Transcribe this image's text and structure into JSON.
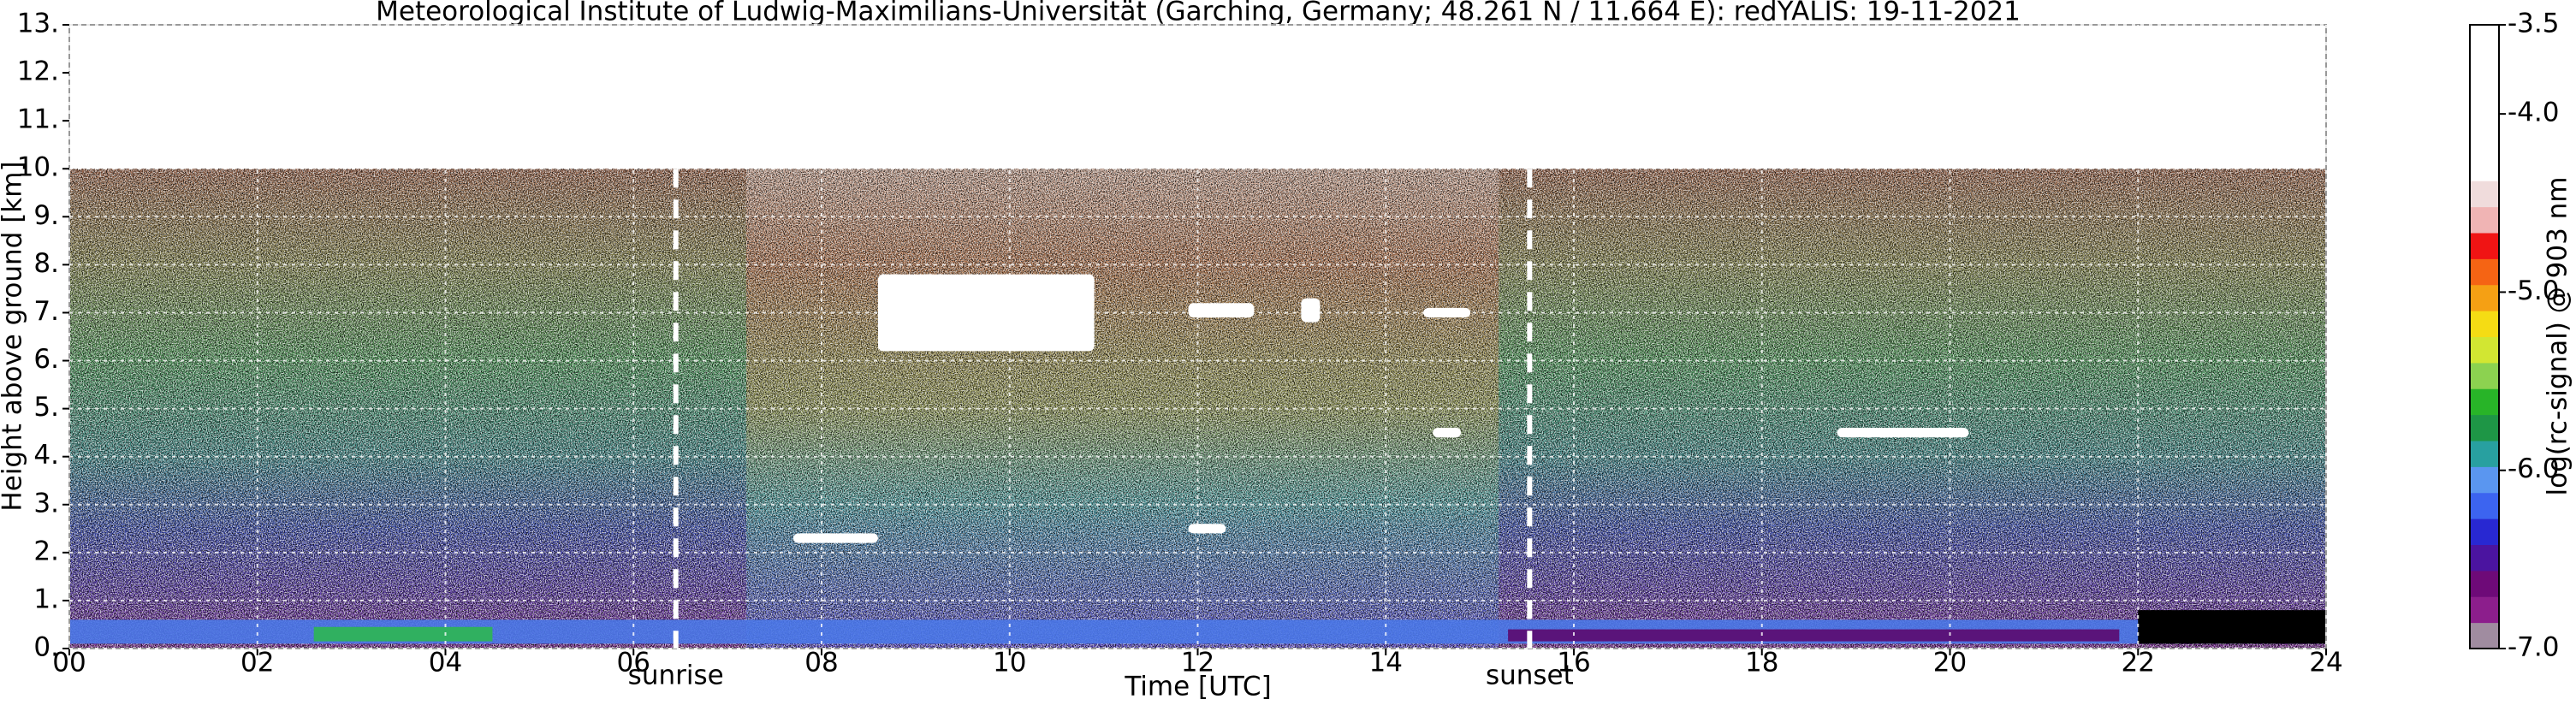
{
  "chart_data": {
    "type": "heatmap",
    "title": "Meteorological Institute of Ludwig-Maximilians-Universität (Garching, Germany; 48.261 N / 11.664 E):    redYALIS: 19-11-2021",
    "xlabel": "Time [UTC]",
    "ylabel": "Height above ground [km]",
    "xlim": [
      0,
      24
    ],
    "xticks": [
      {
        "value": 0,
        "label": "00"
      },
      {
        "value": 2,
        "label": "02"
      },
      {
        "value": 4,
        "label": "04"
      },
      {
        "value": 6,
        "label": "06"
      },
      {
        "value": 8,
        "label": "08"
      },
      {
        "value": 10,
        "label": "10"
      },
      {
        "value": 12,
        "label": "12"
      },
      {
        "value": 14,
        "label": "14"
      },
      {
        "value": 16,
        "label": "16"
      },
      {
        "value": 18,
        "label": "18"
      },
      {
        "value": 20,
        "label": "20"
      },
      {
        "value": 22,
        "label": "22"
      },
      {
        "value": 24,
        "label": "24"
      }
    ],
    "ylim": [
      0,
      13
    ],
    "yticks": [
      {
        "value": 0,
        "label": "0."
      },
      {
        "value": 1,
        "label": "1."
      },
      {
        "value": 2,
        "label": "2."
      },
      {
        "value": 3,
        "label": "3."
      },
      {
        "value": 4,
        "label": "4."
      },
      {
        "value": 5,
        "label": "5."
      },
      {
        "value": 6,
        "label": "6."
      },
      {
        "value": 7,
        "label": "7."
      },
      {
        "value": 8,
        "label": "8."
      },
      {
        "value": 9,
        "label": "9."
      },
      {
        "value": 10,
        "label": "10."
      },
      {
        "value": 11,
        "label": "11."
      },
      {
        "value": 12,
        "label": "12."
      },
      {
        "value": 13,
        "label": "13."
      }
    ],
    "grid": true,
    "annotations": [
      {
        "text": "sunrise",
        "x": 6.45
      },
      {
        "text": "sunset",
        "x": 15.53
      }
    ],
    "colorbar_label": "log(rc-signal) @ 903 nm",
    "clim": [
      -7,
      -3.5
    ],
    "cticks": [
      {
        "value": -7,
        "label": "-7.0"
      },
      {
        "value": -6,
        "label": "-6.0"
      },
      {
        "value": -5,
        "label": "-5.0"
      },
      {
        "value": -4,
        "label": "-4.0"
      },
      -3.5
    ],
    "colormap": [
      "#a08ca0",
      "#8c1e8c",
      "#6e0a78",
      "#4b14a0",
      "#2828d2",
      "#3c64f0",
      "#5a96f0",
      "#28a0a0",
      "#1e9646",
      "#28b428",
      "#8cd250",
      "#d2e632",
      "#f5dc14",
      "#f5a014",
      "#f56414",
      "#f01414",
      "#f0b4b4",
      "#f0dcdc",
      "#ffffff",
      "#ffffff",
      "#ffffff",
      "#ffffff",
      "#ffffff",
      "#ffffff"
    ]
  }
}
